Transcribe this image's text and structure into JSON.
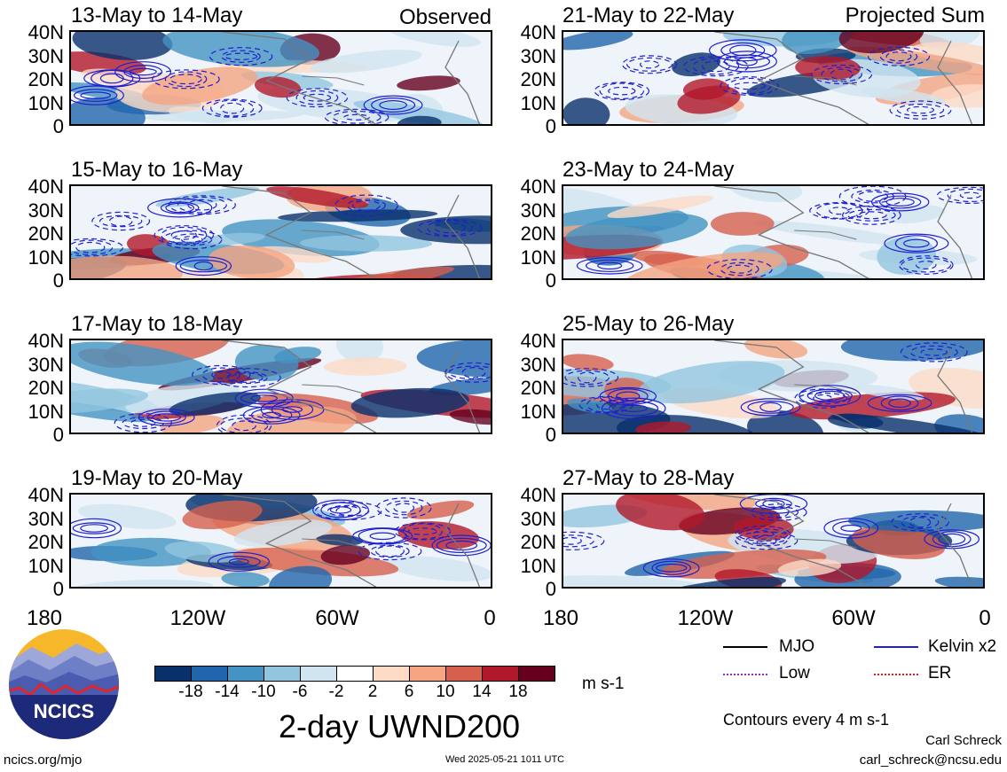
{
  "panels": [
    {
      "title": "13-May to 14-May",
      "tag": "Observed"
    },
    {
      "title": "21-May to 22-May",
      "tag": "Projected Sum"
    },
    {
      "title": "15-May to 16-May",
      "tag": ""
    },
    {
      "title": "23-May to 24-May",
      "tag": ""
    },
    {
      "title": "17-May to 18-May",
      "tag": ""
    },
    {
      "title": "25-May to 26-May",
      "tag": ""
    },
    {
      "title": "19-May to 20-May",
      "tag": ""
    },
    {
      "title": "27-May to 28-May",
      "tag": ""
    }
  ],
  "lat_labels": [
    "40N",
    "30N",
    "20N",
    "10N",
    "0"
  ],
  "lon_labels": [
    "180",
    "120W",
    "60W",
    "0"
  ],
  "colorbar": {
    "labels": [
      "-18",
      "-14",
      "-10",
      "-6",
      "-2",
      "2",
      "6",
      "10",
      "14",
      "18"
    ],
    "colors": [
      "#08306b",
      "#2166ac",
      "#4393c3",
      "#92c5de",
      "#d1e5f0",
      "#ffffff",
      "#fddbc7",
      "#f4a582",
      "#d6604d",
      "#b2182b",
      "#67001f"
    ],
    "units": "m s-1"
  },
  "main_title": "2-day UWND200",
  "logo_text": "NCICS",
  "legend": {
    "items": [
      {
        "label": "MJO",
        "color": "#000000"
      },
      {
        "label": "Kelvin x2",
        "color": "#1f1fcf"
      },
      {
        "label": "Low",
        "color": "#a020f0"
      },
      {
        "label": "ER",
        "color": "#e31a1c"
      }
    ],
    "note": "Contours every 4 m s-1"
  },
  "footer": {
    "left": "ncics.org/mjo",
    "center": "Wed 2025-05-21 1011 UTC",
    "author": "Carl Schreck",
    "email": "carl_schreck@ncsu.edu"
  }
}
